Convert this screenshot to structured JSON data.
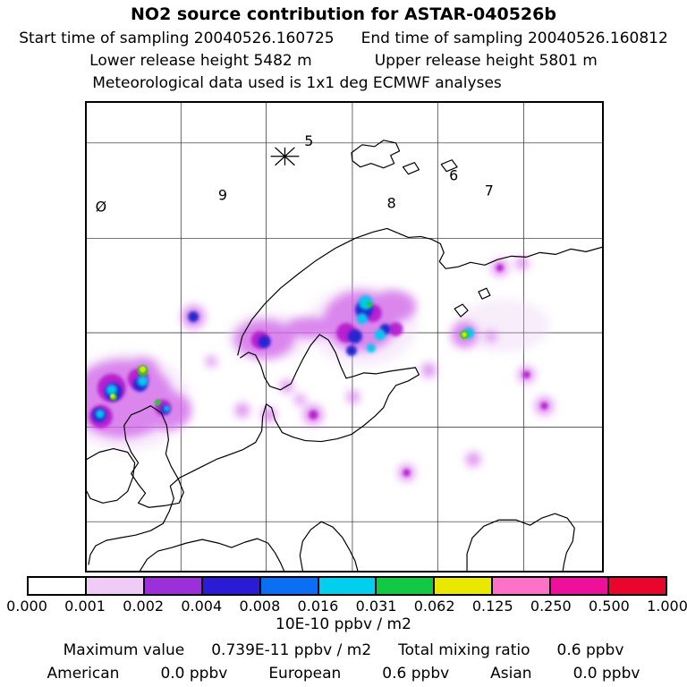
{
  "header": {
    "title": "NO2 source contribution for ASTAR-040526b",
    "start_time": "Start time of sampling 20040526.160725",
    "end_time": "End time of sampling 20040526.160812",
    "lower_release": "Lower release height 5482 m",
    "upper_release": "Upper release height 5801 m",
    "met_data": "Meteorological data used is 1x1 deg ECMWF analyses"
  },
  "map": {
    "labels": [
      {
        "text": "5"
      },
      {
        "text": "9"
      },
      {
        "text": "Ø"
      },
      {
        "text": "8"
      },
      {
        "text": "6"
      },
      {
        "text": "7"
      }
    ]
  },
  "colorbar": {
    "tick_labels": [
      "0.000",
      "0.001",
      "0.002",
      "0.004",
      "0.008",
      "0.016",
      "0.031",
      "0.062",
      "0.125",
      "0.250",
      "0.500",
      "1.000"
    ],
    "colors": [
      "#ffffff",
      "#eeccf6",
      "#9b30d9",
      "#2a1cd4",
      "#0b6ff4",
      "#00cfee",
      "#12c943",
      "#e8e800",
      "#ff70c8",
      "#ee0f9a",
      "#e8062a"
    ],
    "units": "10E-10 ppbv / m2"
  },
  "footer": {
    "max_label": "Maximum value",
    "max_value": "0.739E-11 ppbv / m2",
    "mixing_label": "Total mixing ratio",
    "mixing_value": "0.6 ppbv",
    "regions": [
      {
        "name": "American",
        "value": "0.0 ppbv"
      },
      {
        "name": "European",
        "value": "0.6 ppbv"
      },
      {
        "name": "Asian",
        "value": "0.0 ppbv"
      }
    ]
  },
  "chart_data": {
    "type": "heatmap",
    "title": "NO2 source contribution for ASTAR-040526b",
    "region": "Europe / Scandinavia map with coastlines and lat-lon grid",
    "scale_ticks": [
      0.0,
      0.001,
      0.002,
      0.004,
      0.008,
      0.016,
      0.031,
      0.062,
      0.125,
      0.25,
      0.5,
      1.0
    ],
    "scale_units": "10E-10 ppbv / m2",
    "scale_type": "logarithmic (doubling)",
    "maximum_value": "0.739E-11 ppbv / m2",
    "total_mixing_ratio": "0.6 ppbv",
    "source_contributions": [
      {
        "region": "American",
        "value_ppbv": 0.0
      },
      {
        "region": "European",
        "value_ppbv": 0.6
      },
      {
        "region": "Asian",
        "value_ppbv": 0.0
      }
    ],
    "cluster_labels_on_map": [
      "5",
      "9",
      "Ø",
      "8",
      "6",
      "7"
    ],
    "release_marker": "asterisk star near label 5",
    "sampling": {
      "start": "20040526.160725",
      "end": "20040526.160812"
    },
    "release_heights_m": {
      "lower": 5482,
      "upper": 5801
    },
    "meteorology": "1x1 deg ECMWF analyses",
    "hotspot_areas": [
      "Ireland / west UK",
      "southern Norway",
      "Baltic / Finland",
      "scattered spots over Russia and central Europe"
    ]
  }
}
